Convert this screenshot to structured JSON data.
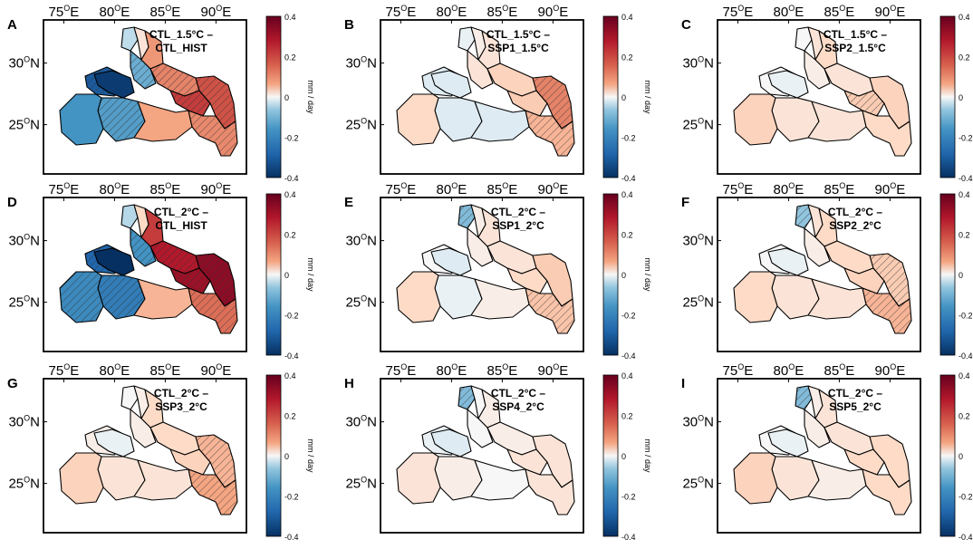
{
  "figure": {
    "x_ticks": [
      "75",
      "80",
      "85",
      "90"
    ],
    "x_tick_suffix": "E",
    "y_ticks": [
      "30",
      "25"
    ],
    "y_tick_suffix": "N",
    "degree_mark": "O",
    "colorbar": {
      "label": "mm / day",
      "ticks": [
        "0.4",
        "0.2",
        "0",
        "-0.2",
        "-0.4"
      ]
    },
    "colors": {
      "strong_negative": "#053061",
      "negative": "#2166ac",
      "light_negative": "#92c5de",
      "neutral": "#f7f7f7",
      "light_positive": "#f4a582",
      "positive": "#d6604d",
      "strong_positive": "#67001f"
    }
  },
  "panels": [
    {
      "letter": "A",
      "title_line1": "CTL_1.5°C –",
      "title_line2": "CTL_HIST",
      "regions": {
        "west": -0.32,
        "westcentral": -0.38,
        "upper1": -0.05,
        "upper2": 0.02,
        "upper3": 0.12,
        "mid": -0.15,
        "central": -0.18,
        "southwest": -0.2,
        "gangnorth": 0.15,
        "east": 0.22,
        "south": 0.1,
        "southeast": 0.14,
        "ganga": 0.25
      },
      "hatched": [
        "west",
        "central",
        "gangnorth",
        "east",
        "ganga",
        "southeast",
        "mid"
      ]
    },
    {
      "letter": "B",
      "title_line1": "CTL_1.5°C –",
      "title_line2": "SSP1_1.5°C",
      "regions": {
        "west": -0.02,
        "westcentral": -0.02,
        "upper1": -0.01,
        "upper2": 0.01,
        "upper3": 0.02,
        "mid": 0.02,
        "central": -0.02,
        "southwest": 0.03,
        "gangnorth": 0.04,
        "east": 0.15,
        "south": -0.02,
        "southeast": 0.08,
        "ganga": 0.05
      },
      "hatched": [
        "east",
        "southeast"
      ]
    },
    {
      "letter": "C",
      "title_line1": "CTL_1.5°C –",
      "title_line2": "SSP2_1.5°C",
      "regions": {
        "west": 0.0,
        "westcentral": -0.01,
        "upper1": 0.0,
        "upper2": 0.02,
        "upper3": 0.03,
        "mid": 0.01,
        "central": 0.02,
        "southwest": 0.04,
        "gangnorth": 0.02,
        "east": 0.04,
        "south": 0.02,
        "southeast": 0.03,
        "ganga": 0.05
      },
      "hatched": [
        "ganga"
      ]
    },
    {
      "letter": "D",
      "title_line1": "CTL_2°C –",
      "title_line2": "CTL_HIST",
      "regions": {
        "west": -0.3,
        "westcentral": -0.42,
        "upper1": -0.06,
        "upper2": 0.03,
        "upper3": 0.25,
        "mid": -0.2,
        "central": -0.25,
        "southwest": -0.22,
        "gangnorth": 0.3,
        "east": 0.35,
        "south": 0.08,
        "southeast": 0.18,
        "ganga": 0.33
      },
      "hatched": [
        "west",
        "central",
        "gangnorth",
        "east",
        "ganga",
        "southeast",
        "mid",
        "southwest"
      ]
    },
    {
      "letter": "E",
      "title_line1": "CTL_2°C –",
      "title_line2": "SSP1_2°C",
      "regions": {
        "west": 0.0,
        "westcentral": -0.02,
        "upper1": -0.12,
        "upper2": 0.01,
        "upper3": 0.02,
        "mid": 0.01,
        "central": -0.01,
        "southwest": 0.03,
        "gangnorth": 0.02,
        "east": 0.05,
        "south": 0.01,
        "southeast": 0.06,
        "ganga": 0.03
      },
      "hatched": [
        "upper1",
        "southeast"
      ]
    },
    {
      "letter": "F",
      "title_line1": "CTL_2°C –",
      "title_line2": "SSP2_2°C",
      "regions": {
        "west": 0.0,
        "westcentral": -0.01,
        "upper1": -0.1,
        "upper2": 0.02,
        "upper3": 0.03,
        "mid": 0.01,
        "central": 0.02,
        "southwest": 0.03,
        "gangnorth": 0.03,
        "east": 0.05,
        "south": 0.02,
        "southeast": 0.08,
        "ganga": 0.04
      },
      "hatched": [
        "upper1",
        "southeast",
        "east"
      ]
    },
    {
      "letter": "G",
      "title_line1": "CTL_2°C –",
      "title_line2": "SSP3_2°C",
      "regions": {
        "west": 0.01,
        "westcentral": -0.01,
        "upper1": 0.0,
        "upper2": 0.01,
        "upper3": 0.03,
        "mid": 0.01,
        "central": 0.02,
        "southwest": 0.04,
        "gangnorth": 0.03,
        "east": 0.08,
        "south": 0.02,
        "southeast": 0.1,
        "ganga": 0.04
      },
      "hatched": [
        "southeast",
        "east"
      ]
    },
    {
      "letter": "H",
      "title_line1": "CTL_2°C –",
      "title_line2": "SSP4_2°C",
      "regions": {
        "west": -0.01,
        "westcentral": -0.02,
        "upper1": -0.12,
        "upper2": 0.0,
        "upper3": 0.01,
        "mid": 0.0,
        "central": 0.01,
        "southwest": 0.02,
        "gangnorth": 0.01,
        "east": 0.02,
        "south": 0.0,
        "southeast": 0.02,
        "ganga": 0.02
      },
      "hatched": [
        "upper1"
      ]
    },
    {
      "letter": "I",
      "title_line1": "CTL_2°C –",
      "title_line2": "SSP5_2°C",
      "regions": {
        "west": 0.0,
        "westcentral": -0.01,
        "upper1": -0.12,
        "upper2": 0.01,
        "upper3": 0.02,
        "mid": 0.01,
        "central": 0.02,
        "southwest": 0.04,
        "gangnorth": 0.02,
        "east": 0.03,
        "south": 0.01,
        "southeast": 0.03,
        "ganga": 0.03
      },
      "hatched": [
        "upper1"
      ]
    }
  ]
}
